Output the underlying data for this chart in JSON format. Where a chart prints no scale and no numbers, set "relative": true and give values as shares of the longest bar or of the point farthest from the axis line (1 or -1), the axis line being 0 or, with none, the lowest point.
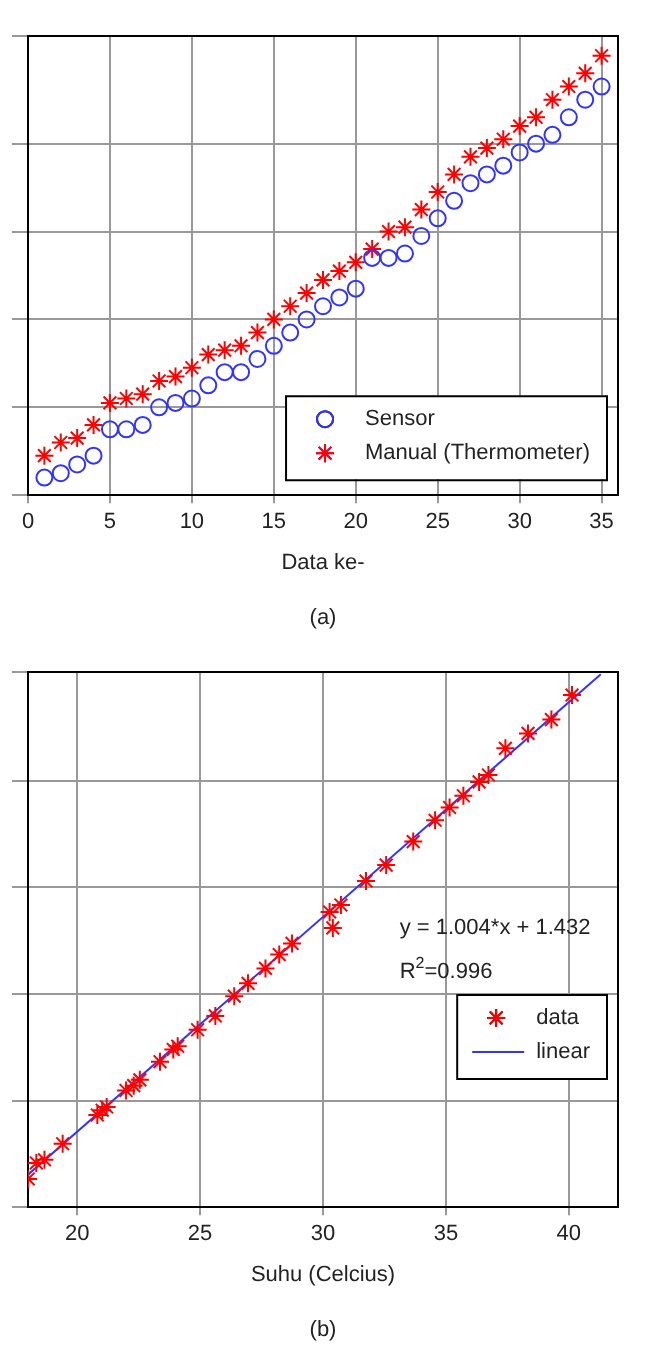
{
  "chart_data": [
    {
      "type": "scatter",
      "relative": true,
      "xlabel": "Data ke-",
      "xlim": [
        0,
        36
      ],
      "xticks": [
        0,
        5,
        10,
        15,
        20,
        25,
        30,
        35
      ],
      "grid": true,
      "legend": "bottom right",
      "annotations": [
        "(a)"
      ],
      "series": [
        {
          "name": "Sensor",
          "color": "#3333ff",
          "marker": "circle",
          "x": [
            1,
            2,
            3,
            4,
            5,
            6,
            7,
            8,
            9,
            10,
            11,
            12,
            13,
            14,
            15,
            16,
            17,
            18,
            19,
            20,
            21,
            22,
            23,
            24,
            25,
            26,
            27,
            28,
            29,
            30,
            31,
            32,
            33,
            34,
            35
          ],
          "values": [
            0.04,
            0.05,
            0.07,
            0.09,
            0.15,
            0.15,
            0.16,
            0.2,
            0.21,
            0.22,
            0.25,
            0.28,
            0.28,
            0.31,
            0.34,
            0.37,
            0.4,
            0.43,
            0.45,
            0.47,
            0.54,
            0.54,
            0.55,
            0.59,
            0.63,
            0.67,
            0.71,
            0.73,
            0.75,
            0.78,
            0.8,
            0.82,
            0.86,
            0.9,
            0.93
          ]
        },
        {
          "name": "Manual (Thermometer)",
          "color": "#ff0000",
          "marker": "cross",
          "x": [
            1,
            2,
            3,
            4,
            5,
            6,
            7,
            8,
            9,
            10,
            11,
            12,
            13,
            14,
            15,
            16,
            17,
            18,
            19,
            20,
            21,
            22,
            23,
            24,
            25,
            26,
            27,
            28,
            29,
            30,
            31,
            32,
            33,
            34,
            35
          ],
          "values": [
            0.09,
            0.12,
            0.13,
            0.16,
            0.21,
            0.22,
            0.23,
            0.26,
            0.27,
            0.29,
            0.32,
            0.33,
            0.34,
            0.37,
            0.4,
            0.43,
            0.46,
            0.49,
            0.51,
            0.53,
            0.56,
            0.6,
            0.61,
            0.65,
            0.69,
            0.73,
            0.77,
            0.79,
            0.81,
            0.84,
            0.86,
            0.9,
            0.93,
            0.96,
            1
          ]
        }
      ]
    },
    {
      "type": "scatter",
      "relative": true,
      "xlabel": "Suhu (Celcius)",
      "xlim": [
        18,
        42
      ],
      "xticks": [
        20,
        25,
        30,
        35,
        40
      ],
      "grid": true,
      "legend": "right",
      "annotations": [
        "y = 1.004*x + 1.432",
        "R$^{2}$=0.996",
        "(b)"
      ],
      "series": [
        {
          "name": "data",
          "color": "#ff0000",
          "marker": "cross",
          "x": [
            18.01,
            18.34,
            18.67,
            19.41,
            20.82,
            21.02,
            21.2,
            21.99,
            22.3,
            22.55,
            23.37,
            23.91,
            24.09,
            24.9,
            25.62,
            26.39,
            26.95,
            27.66,
            28.22,
            28.74,
            30.27,
            30.73,
            30.4,
            31.75,
            32.57,
            33.67,
            34.56,
            35.15,
            35.71,
            36.35,
            36.73,
            37.42,
            38.34,
            39.29,
            40.13
          ],
          "values": [
            0.053,
            0.083,
            0.089,
            0.119,
            0.173,
            0.182,
            0.188,
            0.219,
            0.228,
            0.239,
            0.273,
            0.296,
            0.302,
            0.333,
            0.359,
            0.396,
            0.42,
            0.448,
            0.474,
            0.495,
            0.554,
            0.567,
            0.524,
            0.612,
            0.642,
            0.686,
            0.726,
            0.75,
            0.772,
            0.798,
            0.811,
            0.861,
            0.889,
            0.915,
            0.961
          ]
        },
        {
          "name": "linear",
          "type": "line",
          "color": "#3333ff",
          "marker": "none",
          "x": [
            18,
            41.3
          ],
          "values": [
            0.061,
            1
          ]
        }
      ]
    }
  ]
}
